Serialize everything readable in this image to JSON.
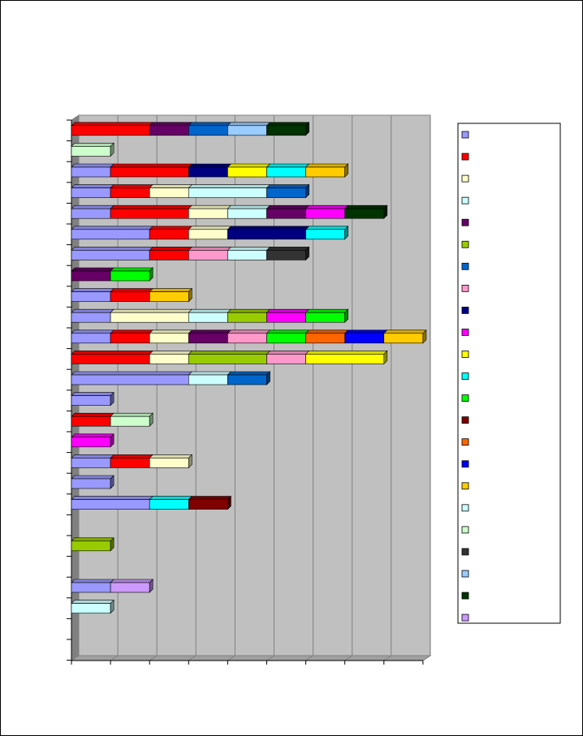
{
  "chart_data": {
    "type": "bar",
    "orientation": "horizontal",
    "stacked": true,
    "three_d": true,
    "title": "",
    "xlabel": "",
    "ylabel": "",
    "xlim": [
      0,
      9
    ],
    "grid": true,
    "legend_position": "right",
    "rows": 26,
    "series": [
      {
        "name": "",
        "color": "#9999ff"
      },
      {
        "name": "",
        "color": "#ff0000"
      },
      {
        "name": "",
        "color": "#ffffcc"
      },
      {
        "name": "",
        "color": "#ccffff"
      },
      {
        "name": "",
        "color": "#660066"
      },
      {
        "name": "",
        "color": "#99cc00"
      },
      {
        "name": "",
        "color": "#0066cc"
      },
      {
        "name": "",
        "color": "#ff99cc"
      },
      {
        "name": "",
        "color": "#000080"
      },
      {
        "name": "",
        "color": "#ff00ff"
      },
      {
        "name": "",
        "color": "#ffff00"
      },
      {
        "name": "",
        "color": "#00ffff"
      },
      {
        "name": "",
        "color": "#00ff00"
      },
      {
        "name": "",
        "color": "#800000"
      },
      {
        "name": "",
        "color": "#ff6600"
      },
      {
        "name": "",
        "color": "#0000ff"
      },
      {
        "name": "",
        "color": "#ffcc00"
      },
      {
        "name": "",
        "color": "#ccffff"
      },
      {
        "name": "",
        "color": "#ccffcc"
      },
      {
        "name": "",
        "color": "#333333"
      },
      {
        "name": "",
        "color": "#99ccff"
      },
      {
        "name": "",
        "color": "#003300"
      },
      {
        "name": "",
        "color": "#cc99ff"
      }
    ],
    "bars": [
      {
        "row": 0,
        "segments": [
          [
            1,
            2
          ],
          [
            4,
            1
          ],
          [
            6,
            1
          ],
          [
            20,
            1
          ],
          [
            21,
            1
          ]
        ]
      },
      {
        "row": 1,
        "segments": [
          [
            18,
            1
          ]
        ]
      },
      {
        "row": 2,
        "segments": [
          [
            0,
            1
          ],
          [
            1,
            2
          ],
          [
            8,
            1
          ],
          [
            10,
            1
          ],
          [
            11,
            1
          ],
          [
            16,
            1
          ]
        ]
      },
      {
        "row": 3,
        "segments": [
          [
            0,
            1
          ],
          [
            1,
            1
          ],
          [
            2,
            1
          ],
          [
            3,
            2
          ],
          [
            6,
            1
          ]
        ]
      },
      {
        "row": 4,
        "segments": [
          [
            0,
            1
          ],
          [
            1,
            2
          ],
          [
            2,
            1
          ],
          [
            3,
            1
          ],
          [
            4,
            1
          ],
          [
            9,
            1
          ],
          [
            21,
            1
          ]
        ]
      },
      {
        "row": 5,
        "segments": [
          [
            0,
            2
          ],
          [
            1,
            1
          ],
          [
            2,
            1
          ],
          [
            8,
            2
          ],
          [
            11,
            1
          ]
        ]
      },
      {
        "row": 6,
        "segments": [
          [
            0,
            2
          ],
          [
            1,
            1
          ],
          [
            7,
            1
          ],
          [
            3,
            1
          ],
          [
            19,
            1
          ]
        ]
      },
      {
        "row": 7,
        "segments": [
          [
            4,
            1
          ],
          [
            12,
            1
          ]
        ]
      },
      {
        "row": 8,
        "segments": [
          [
            0,
            1
          ],
          [
            1,
            1
          ],
          [
            16,
            1
          ]
        ]
      },
      {
        "row": 9,
        "segments": [
          [
            0,
            1
          ],
          [
            2,
            2
          ],
          [
            3,
            1
          ],
          [
            5,
            1
          ],
          [
            9,
            1
          ],
          [
            12,
            1
          ]
        ]
      },
      {
        "row": 10,
        "segments": [
          [
            0,
            1
          ],
          [
            1,
            1
          ],
          [
            2,
            1
          ],
          [
            4,
            1
          ],
          [
            7,
            1
          ],
          [
            12,
            1
          ],
          [
            14,
            1
          ],
          [
            15,
            1
          ],
          [
            16,
            1
          ]
        ]
      },
      {
        "row": 11,
        "segments": [
          [
            1,
            2
          ],
          [
            2,
            1
          ],
          [
            5,
            2
          ],
          [
            7,
            1
          ],
          [
            10,
            2
          ]
        ]
      },
      {
        "row": 12,
        "segments": [
          [
            0,
            3
          ],
          [
            3,
            1
          ],
          [
            6,
            1
          ]
        ]
      },
      {
        "row": 13,
        "segments": [
          [
            0,
            1
          ]
        ]
      },
      {
        "row": 14,
        "segments": [
          [
            1,
            1
          ],
          [
            18,
            1
          ]
        ]
      },
      {
        "row": 15,
        "segments": [
          [
            9,
            1
          ]
        ]
      },
      {
        "row": 16,
        "segments": [
          [
            0,
            1
          ],
          [
            1,
            1
          ],
          [
            2,
            1
          ]
        ]
      },
      {
        "row": 17,
        "segments": [
          [
            0,
            1
          ]
        ]
      },
      {
        "row": 18,
        "segments": [
          [
            0,
            2
          ],
          [
            11,
            1
          ],
          [
            13,
            1
          ]
        ]
      },
      {
        "row": 20,
        "segments": [
          [
            5,
            1
          ]
        ]
      },
      {
        "row": 22,
        "segments": [
          [
            0,
            1
          ],
          [
            22,
            1
          ]
        ]
      },
      {
        "row": 23,
        "segments": [
          [
            17,
            1
          ]
        ]
      }
    ]
  }
}
